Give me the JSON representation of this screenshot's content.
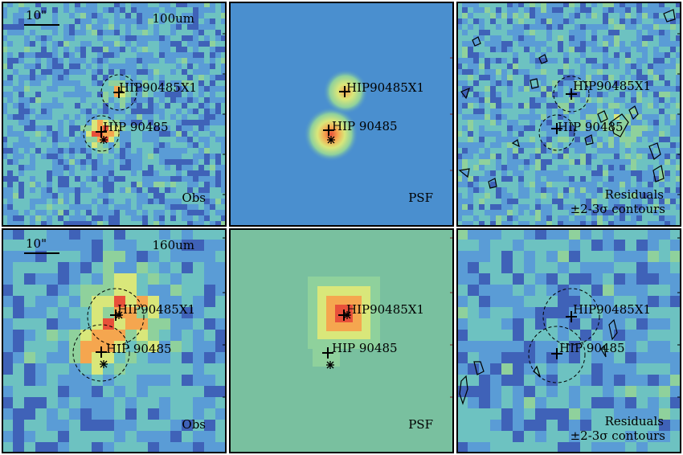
{
  "colors": {
    "deep": "#3e3a9f",
    "blue": "#3f62b8",
    "lightblue": "#5a9cd6",
    "cyan": "#6dc2c1",
    "green": "#8fd19c",
    "yellow": "#d9e77a",
    "orange": "#f5a64f",
    "red": "#e8503a",
    "psfBg1": "#4a8fcf",
    "psfBg2": "#79c09f"
  },
  "rows": [
    {
      "band": "100um",
      "scale_label": "10\"",
      "obs_label": "Obs",
      "psf_label": "PSF",
      "residual_label": "Residuals",
      "contour_caption": "±2-3σ contours",
      "source_1": "HIP90485X1",
      "source_2": "HIP 90485"
    },
    {
      "band": "160um",
      "scale_label": "10\"",
      "obs_label": "Obs",
      "psf_label": "PSF",
      "residual_label": "Residuals",
      "contour_caption": "±2-3σ contours",
      "source_1": "HIP90485X1",
      "source_2": "HIP 90485"
    }
  ]
}
